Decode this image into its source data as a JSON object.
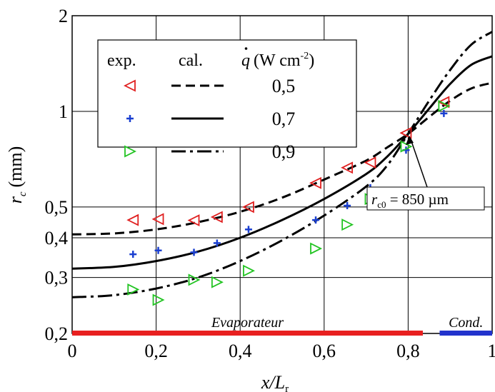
{
  "chart_data": {
    "type": "scatter",
    "xlabel": "x/L",
    "xlabel_sub": "r",
    "ylabel": "r",
    "ylabel_sub": "c",
    "ylabel_unit": "(mm)",
    "y_scale": "log",
    "xlim": [
      0,
      1
    ],
    "ylim": [
      0.2,
      2
    ],
    "grid": true,
    "x_ticks": [
      {
        "v": 0,
        "label": "0"
      },
      {
        "v": 0.2,
        "label": "0,2"
      },
      {
        "v": 0.4,
        "label": "0,4"
      },
      {
        "v": 0.6,
        "label": "0,6"
      },
      {
        "v": 0.8,
        "label": "0,8"
      },
      {
        "v": 1,
        "label": "1"
      }
    ],
    "y_ticks": [
      {
        "v": 0.2,
        "label": "0,2"
      },
      {
        "v": 0.3,
        "label": "0,3"
      },
      {
        "v": 0.4,
        "label": "0,4"
      },
      {
        "v": 0.5,
        "label": "0,5"
      },
      {
        "v": 1,
        "label": "1"
      },
      {
        "v": 2,
        "label": "2"
      }
    ],
    "legend": {
      "placement": "top-left",
      "header_exp": "exp.",
      "header_cal": "cal.",
      "header_q_symbol": "q",
      "header_q_unit": "(W cm",
      "header_q_exp": "-2",
      "header_q_close": ")",
      "rows": [
        {
          "q": "0,5",
          "marker": "triangle-left",
          "color": "#e02020",
          "line": "dashed"
        },
        {
          "q": "0,7",
          "marker": "plus",
          "color": "#1a3fd0",
          "line": "solid"
        },
        {
          "q": "0,9",
          "marker": "triangle-right",
          "color": "#22c422",
          "line": "dashdot"
        }
      ]
    },
    "experimental_series": [
      {
        "q": "0,5",
        "marker": "triangle-left",
        "color": "#e02020",
        "points": [
          [
            0.145,
            0.455
          ],
          [
            0.205,
            0.458
          ],
          [
            0.29,
            0.454
          ],
          [
            0.345,
            0.465
          ],
          [
            0.42,
            0.5
          ],
          [
            0.58,
            0.595
          ],
          [
            0.655,
            0.665
          ],
          [
            0.71,
            0.69
          ],
          [
            0.795,
            0.855
          ],
          [
            0.885,
            1.07
          ]
        ]
      },
      {
        "q": "0,7",
        "marker": "plus",
        "color": "#1a3fd0",
        "points": [
          [
            0.145,
            0.355
          ],
          [
            0.205,
            0.365
          ],
          [
            0.29,
            0.36
          ],
          [
            0.345,
            0.385
          ],
          [
            0.42,
            0.425
          ],
          [
            0.58,
            0.455
          ],
          [
            0.655,
            0.505
          ],
          [
            0.71,
            0.575
          ],
          [
            0.795,
            0.755
          ],
          [
            0.885,
            0.985
          ]
        ]
      },
      {
        "q": "0,9",
        "marker": "triangle-right",
        "color": "#22c422",
        "points": [
          [
            0.145,
            0.275
          ],
          [
            0.205,
            0.255
          ],
          [
            0.29,
            0.295
          ],
          [
            0.345,
            0.29
          ],
          [
            0.42,
            0.315
          ],
          [
            0.58,
            0.37
          ],
          [
            0.655,
            0.44
          ],
          [
            0.71,
            0.53
          ],
          [
            0.795,
            0.775
          ],
          [
            0.885,
            1.04
          ]
        ]
      }
    ],
    "calculated_series": [
      {
        "q": "0,5",
        "line": "dashed",
        "points": [
          [
            0,
            0.41
          ],
          [
            0.1,
            0.413
          ],
          [
            0.2,
            0.425
          ],
          [
            0.3,
            0.448
          ],
          [
            0.4,
            0.483
          ],
          [
            0.5,
            0.535
          ],
          [
            0.6,
            0.61
          ],
          [
            0.7,
            0.7
          ],
          [
            0.75,
            0.77
          ],
          [
            0.8,
            0.85
          ],
          [
            0.85,
            0.96
          ],
          [
            0.9,
            1.08
          ],
          [
            0.95,
            1.18
          ],
          [
            1,
            1.23
          ]
        ]
      },
      {
        "q": "0,7",
        "line": "solid",
        "points": [
          [
            0,
            0.32
          ],
          [
            0.1,
            0.324
          ],
          [
            0.2,
            0.338
          ],
          [
            0.3,
            0.362
          ],
          [
            0.4,
            0.4
          ],
          [
            0.5,
            0.455
          ],
          [
            0.6,
            0.53
          ],
          [
            0.7,
            0.635
          ],
          [
            0.75,
            0.72
          ],
          [
            0.8,
            0.85
          ],
          [
            0.85,
            1.02
          ],
          [
            0.9,
            1.22
          ],
          [
            0.95,
            1.4
          ],
          [
            1,
            1.49
          ]
        ]
      },
      {
        "q": "0,9",
        "line": "dashdot",
        "points": [
          [
            0,
            0.26
          ],
          [
            0.1,
            0.264
          ],
          [
            0.2,
            0.277
          ],
          [
            0.3,
            0.3
          ],
          [
            0.4,
            0.338
          ],
          [
            0.5,
            0.393
          ],
          [
            0.6,
            0.47
          ],
          [
            0.7,
            0.58
          ],
          [
            0.75,
            0.675
          ],
          [
            0.8,
            0.85
          ],
          [
            0.85,
            1.08
          ],
          [
            0.9,
            1.35
          ],
          [
            0.95,
            1.62
          ],
          [
            1,
            1.78
          ]
        ]
      }
    ],
    "annotation": {
      "text_main": "r",
      "text_sub": "c0",
      "text_rest": " = 850 µm",
      "x": 0.8,
      "y": 0.85
    },
    "zones": [
      {
        "label": "Evaporateur",
        "x_start": 0,
        "x_end": 0.835,
        "color": "#e82020"
      },
      {
        "label": "Cond.",
        "x_start": 0.875,
        "x_end": 1,
        "color": "#2233cc"
      }
    ]
  }
}
